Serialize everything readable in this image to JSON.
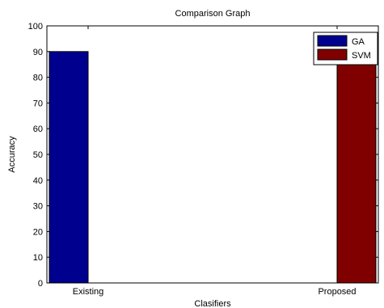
{
  "chart_data": {
    "type": "bar",
    "title": "Comparison Graph",
    "xlabel": "Clasifiers",
    "ylabel": "Accuracy",
    "categories": [
      "Existing",
      "Proposed"
    ],
    "ylim": [
      0,
      100
    ],
    "yticks": [
      0,
      10,
      20,
      30,
      40,
      50,
      60,
      70,
      80,
      90,
      100
    ],
    "grid": false,
    "legend_position": "top-right",
    "series": [
      {
        "name": "GA",
        "color": "#00008f",
        "values": [
          90,
          null
        ]
      },
      {
        "name": "SVM",
        "color": "#800000",
        "values": [
          null,
          95
        ]
      }
    ]
  }
}
